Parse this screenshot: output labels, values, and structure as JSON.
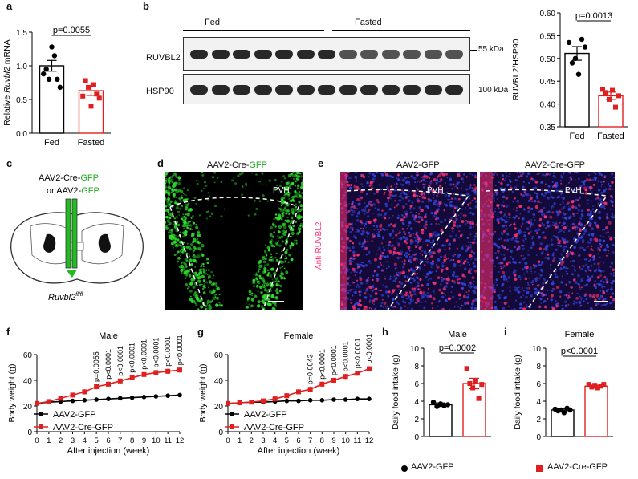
{
  "panel_labels": {
    "a": "a",
    "b": "b",
    "c": "c",
    "d": "d",
    "e": "e",
    "f": "f",
    "g": "g",
    "h": "h",
    "i": "i"
  },
  "panel_c": {
    "virus_line1_a": "AAV2-Cre-",
    "virus_line1_b": "GFP",
    "virus_line2_a": "or AAV2-",
    "virus_line2_b": "GFP",
    "mouse_line": "Ruvbl2",
    "mouse_sup": "fl/fl"
  },
  "panel_d": {
    "title_a": "AAV2-Cre-",
    "title_b": "GFP",
    "region": "PVH"
  },
  "panel_e": {
    "left_title": "AAV2-GFP",
    "right_title": "AAV2-Cre-GFP",
    "stain": "Anti-RUVBL2",
    "region": "PVH"
  },
  "panel_b_blot": {
    "group1": "Fed",
    "group2": "Fasted",
    "row1": "RUVBL2",
    "row2": "HSP90",
    "size1": "55 kDa",
    "size2": "100 kDa"
  },
  "colors": {
    "black": "#000000",
    "red": "#e02020",
    "green": "#22cc22",
    "magenta": "#ff3377"
  },
  "legend_bottom": {
    "item1": "AAV2-GFP",
    "item2": "AAV2-Cre-GFP"
  },
  "chart_data": [
    {
      "id": "a",
      "type": "bar",
      "categories": [
        "Fed",
        "Fasted"
      ],
      "values": [
        1.0,
        0.63
      ],
      "errors": [
        0.08,
        0.07
      ],
      "points": [
        [
          0.88,
          0.95,
          0.8,
          1.28,
          1.15,
          0.8,
          0.68
        ],
        [
          0.55,
          0.78,
          0.68,
          0.4,
          0.72,
          0.58,
          0.52
        ]
      ],
      "ylabel_pre": "Relative ",
      "ylabel_it": "Ruvbl2",
      "ylabel_post": " mRNA",
      "ylim": [
        0,
        1.5
      ],
      "yticks": [
        "0.0",
        "0.5",
        "1.0",
        "1.5"
      ],
      "pvalue": "p=0.0055"
    },
    {
      "id": "b",
      "type": "bar",
      "categories": [
        "Fed",
        "Fasted"
      ],
      "values": [
        0.511,
        0.418
      ],
      "errors": [
        0.015,
        0.008
      ],
      "points": [
        [
          0.535,
          0.49,
          0.5,
          0.465,
          0.542,
          0.525
        ],
        [
          0.432,
          0.425,
          0.41,
          0.43,
          0.393,
          0.418
        ]
      ],
      "ylabel": "RUVBL2/HSP90",
      "ylim": [
        0.35,
        0.6
      ],
      "yticks": [
        "0.35",
        "0.40",
        "0.45",
        "0.50",
        "0.55",
        "0.60"
      ],
      "pvalue": "p=0.0013"
    },
    {
      "id": "f",
      "type": "line",
      "title": "Male",
      "xlabel": "After injection (week)",
      "ylabel": "Body weight (g)",
      "x": [
        0,
        1,
        2,
        3,
        4,
        5,
        6,
        7,
        8,
        9,
        10,
        11,
        12
      ],
      "xticks": [
        "0",
        "1",
        "2",
        "3",
        "4",
        "5",
        "6",
        "7",
        "8",
        "9",
        "10",
        "11",
        "12"
      ],
      "ylim": [
        0,
        60
      ],
      "yticks": [
        "0",
        "20",
        "40",
        "60"
      ],
      "series": [
        {
          "name": "AAV2-GFP",
          "values": [
            22,
            23,
            23.5,
            24,
            24.5,
            25,
            25.5,
            26,
            26.5,
            27,
            27.5,
            28,
            28.5
          ]
        },
        {
          "name": "AAV2-Cre-GFP",
          "values": [
            22,
            23.5,
            26,
            28.5,
            31,
            35,
            37,
            39.5,
            42,
            44.5,
            46,
            47,
            48
          ]
        }
      ],
      "annotations": [
        {
          "x": 5,
          "text": "p=0.0055"
        },
        {
          "x": 6,
          "text": "p<0.0001"
        },
        {
          "x": 7,
          "text": "p<0.0001"
        },
        {
          "x": 8,
          "text": "p<0.0001"
        },
        {
          "x": 9,
          "text": "p<0.0001"
        },
        {
          "x": 10,
          "text": "p<0.0001"
        },
        {
          "x": 11,
          "text": "p<0.0001"
        },
        {
          "x": 12,
          "text": "p<0.0001"
        }
      ]
    },
    {
      "id": "g",
      "type": "line",
      "title": "Female",
      "xlabel": "After injection (week)",
      "ylabel": "Body weight (g)",
      "x": [
        0,
        1,
        2,
        3,
        4,
        5,
        6,
        7,
        8,
        9,
        10,
        11,
        12
      ],
      "xticks": [
        "0",
        "1",
        "2",
        "3",
        "4",
        "5",
        "6",
        "7",
        "8",
        "9",
        "10",
        "11",
        "12"
      ],
      "ylim": [
        0,
        60
      ],
      "yticks": [
        "0",
        "20",
        "40",
        "60"
      ],
      "series": [
        {
          "name": "AAV2-GFP",
          "values": [
            22,
            22.5,
            23,
            23,
            23.5,
            24,
            24,
            24.5,
            24.5,
            25,
            25,
            25.5,
            25.5
          ]
        },
        {
          "name": "AAV2-Cre-GFP",
          "values": [
            22,
            22.5,
            23,
            24,
            25.5,
            28,
            31,
            33,
            37,
            40,
            43,
            45.5,
            49
          ]
        }
      ],
      "annotations": [
        {
          "x": 7,
          "text": "p=0.0043"
        },
        {
          "x": 8,
          "text": "p<0.0001"
        },
        {
          "x": 9,
          "text": "p<0.0001"
        },
        {
          "x": 10,
          "text": "p<0.0001"
        },
        {
          "x": 11,
          "text": "p<0.0001"
        },
        {
          "x": 12,
          "text": "p<0.0001"
        }
      ]
    },
    {
      "id": "h",
      "type": "bar",
      "title": "Male",
      "ylabel": "Daily food intake (g)",
      "categories": [
        "",
        ""
      ],
      "values": [
        3.6,
        6.0
      ],
      "errors": [
        0.2,
        0.6
      ],
      "points": [
        [
          3.9,
          3.4,
          3.7,
          3.5,
          3.6
        ],
        [
          7.7,
          6.0,
          5.5,
          6.3,
          4.3,
          5.9
        ]
      ],
      "ylim": [
        0,
        10
      ],
      "yticks": [
        "0",
        "2",
        "4",
        "6",
        "8",
        "10"
      ],
      "pvalue": "p=0.0002"
    },
    {
      "id": "i",
      "type": "bar",
      "title": "Female",
      "ylabel": "Daily food intake (g)",
      "categories": [
        "",
        ""
      ],
      "values": [
        3.0,
        5.7
      ],
      "errors": [
        0.15,
        0.12
      ],
      "points": [
        [
          3.1,
          2.9,
          3.0,
          2.7,
          3.2,
          3.0
        ],
        [
          5.9,
          5.6,
          5.8,
          5.5,
          5.7,
          5.9
        ]
      ],
      "ylim": [
        0,
        10
      ],
      "yticks": [
        "0",
        "2",
        "4",
        "6",
        "8",
        "10"
      ],
      "pvalue": "p<0.0001"
    }
  ]
}
